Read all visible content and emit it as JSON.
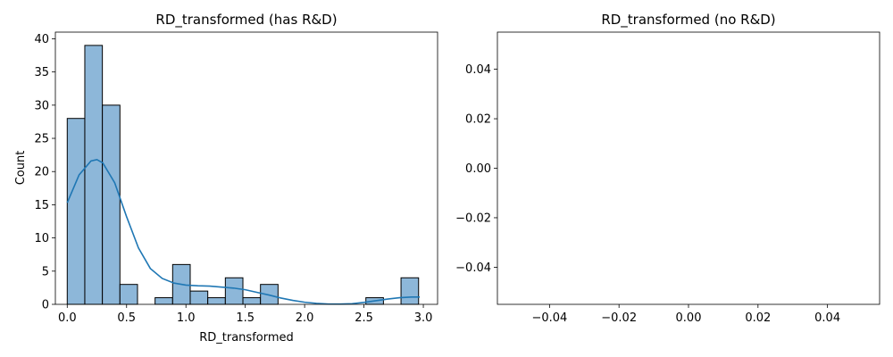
{
  "chart_data": [
    {
      "type": "bar",
      "title": "RD_transformed (has R&D)",
      "xlabel": "RD_transformed",
      "ylabel": "Count",
      "xlim": [
        -0.1,
        3.12
      ],
      "ylim": [
        0,
        41
      ],
      "xticks": [
        "0.0",
        "0.5",
        "1.0",
        "1.5",
        "2.0",
        "2.5",
        "3.0"
      ],
      "yticks": [
        "0",
        "5",
        "10",
        "15",
        "20",
        "25",
        "30",
        "35",
        "40"
      ],
      "bin_edges": [
        0.0,
        0.148,
        0.296,
        0.444,
        0.592,
        0.74,
        0.888,
        1.036,
        1.184,
        1.332,
        1.48,
        1.628,
        1.776,
        1.924,
        2.072,
        2.22,
        2.368,
        2.516,
        2.664,
        2.812,
        2.96
      ],
      "counts": [
        28,
        39,
        30,
        3,
        0,
        1,
        6,
        2,
        1,
        4,
        1,
        3,
        0,
        0,
        0,
        0,
        0,
        1,
        0,
        4
      ],
      "kde": {
        "x": [
          0.0,
          0.1,
          0.2,
          0.25,
          0.3,
          0.4,
          0.5,
          0.6,
          0.7,
          0.8,
          0.9,
          1.0,
          1.1,
          1.2,
          1.3,
          1.4,
          1.5,
          1.6,
          1.7,
          1.8,
          1.9,
          2.0,
          2.1,
          2.2,
          2.3,
          2.4,
          2.5,
          2.6,
          2.7,
          2.8,
          2.9,
          2.97
        ],
        "y": [
          15.3,
          19.5,
          21.6,
          21.8,
          21.3,
          18.3,
          13.2,
          8.5,
          5.4,
          3.9,
          3.2,
          2.9,
          2.8,
          2.75,
          2.6,
          2.45,
          2.2,
          1.8,
          1.4,
          0.95,
          0.6,
          0.32,
          0.15,
          0.05,
          0.04,
          0.1,
          0.3,
          0.55,
          0.8,
          1.0,
          1.1,
          1.1
        ]
      }
    },
    {
      "type": "bar",
      "title": "RD_transformed (no R&D)",
      "xlabel": "",
      "ylabel": "",
      "xlim": [
        -0.055,
        0.055
      ],
      "ylim": [
        -0.055,
        0.055
      ],
      "xticks": [
        "−0.04",
        "−0.02",
        "0.00",
        "0.02",
        "0.04"
      ],
      "yticks": [
        "−0.04",
        "−0.02",
        "0.00",
        "0.02",
        "0.04"
      ],
      "bin_edges": [],
      "counts": []
    }
  ]
}
